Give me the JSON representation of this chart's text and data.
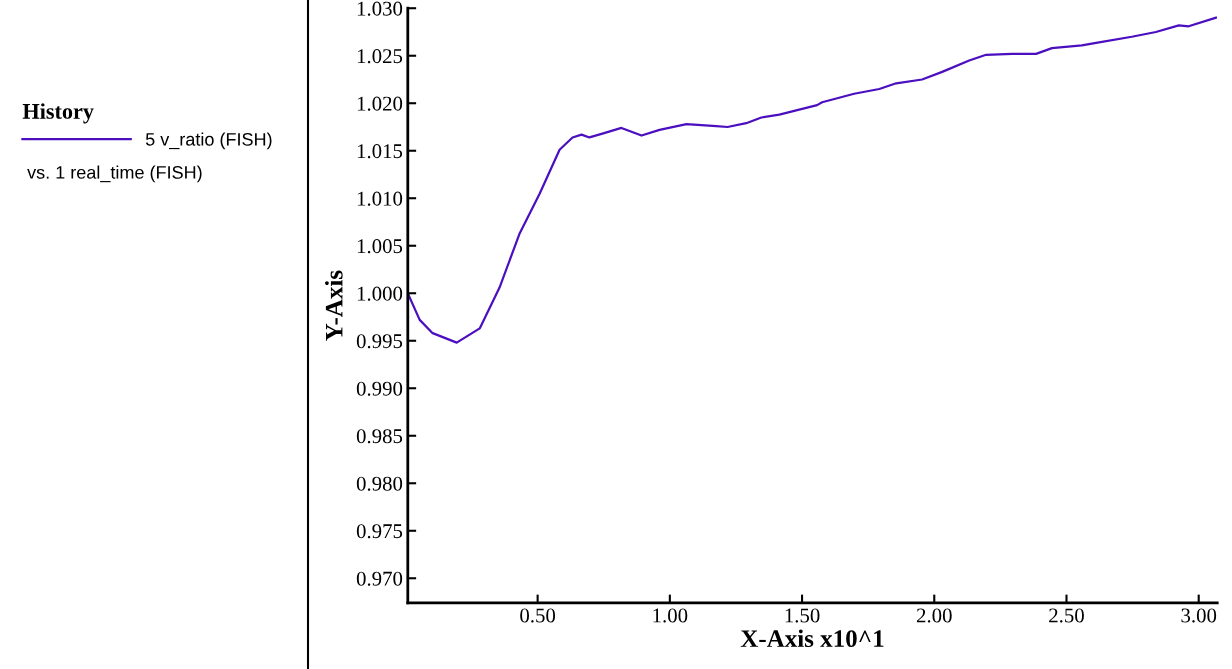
{
  "chart_data": {
    "type": "line",
    "xlabel": "X-Axis x10^1",
    "ylabel": "Y-Axis",
    "legend_title": "History",
    "annotations": [
      "vs. 1 real_time (FISH)"
    ],
    "xlim": [
      0.009,
      3.07
    ],
    "ylim": [
      0.9674,
      1.03
    ],
    "xticks": [
      {
        "value": 0.5,
        "label": "0.50"
      },
      {
        "value": 1.0,
        "label": "1.00"
      },
      {
        "value": 1.5,
        "label": "1.50"
      },
      {
        "value": 2.0,
        "label": "2.00"
      },
      {
        "value": 2.5,
        "label": "2.50"
      },
      {
        "value": 3.0,
        "label": "3.00"
      }
    ],
    "yticks": [
      {
        "value": 0.97,
        "label": "0.970"
      },
      {
        "value": 0.975,
        "label": "0.975"
      },
      {
        "value": 0.98,
        "label": "0.980"
      },
      {
        "value": 0.985,
        "label": "0.985"
      },
      {
        "value": 0.99,
        "label": "0.990"
      },
      {
        "value": 0.995,
        "label": "0.995"
      },
      {
        "value": 1.0,
        "label": "1.000"
      },
      {
        "value": 1.005,
        "label": "1.005"
      },
      {
        "value": 1.01,
        "label": "1.010"
      },
      {
        "value": 1.015,
        "label": "1.015"
      },
      {
        "value": 1.02,
        "label": "1.020"
      },
      {
        "value": 1.025,
        "label": "1.025"
      },
      {
        "value": 1.03,
        "label": "1.030"
      }
    ],
    "grid": false,
    "legend": "left",
    "marker": "none",
    "line_style": "solid",
    "series": [
      {
        "name": "5 v_ratio (FISH)",
        "color": "#4b0fc0",
        "x": [
          0.009,
          0.054,
          0.103,
          0.194,
          0.281,
          0.356,
          0.432,
          0.508,
          0.583,
          0.632,
          0.666,
          0.696,
          0.745,
          0.817,
          0.893,
          0.961,
          1.063,
          1.176,
          1.218,
          1.289,
          1.346,
          1.414,
          1.557,
          1.576,
          1.697,
          1.792,
          1.856,
          1.954,
          2.03,
          2.132,
          2.196,
          2.294,
          2.385,
          2.445,
          2.558,
          2.623,
          2.747,
          2.838,
          2.925,
          2.962,
          3.065
        ],
        "values": [
          1.0,
          0.9972,
          0.9958,
          0.9948,
          0.9963,
          1.0006,
          1.0063,
          1.0105,
          1.0151,
          1.0164,
          1.0167,
          1.0164,
          1.0168,
          1.0174,
          1.0166,
          1.0172,
          1.0178,
          1.0176,
          1.0175,
          1.0179,
          1.0185,
          1.0188,
          1.0198,
          1.0201,
          1.021,
          1.0215,
          1.0221,
          1.0225,
          1.0233,
          1.0245,
          1.0251,
          1.0252,
          1.0252,
          1.0258,
          1.0261,
          1.0264,
          1.027,
          1.0275,
          1.0282,
          1.0281,
          1.029
        ]
      }
    ]
  }
}
